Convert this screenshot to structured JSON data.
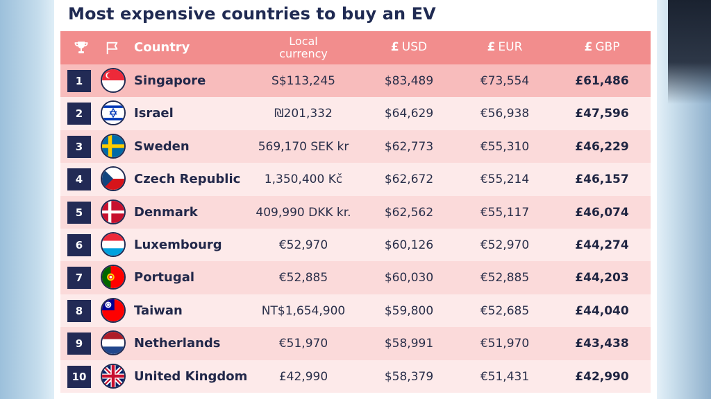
{
  "title": "Most expensive countries to buy an EV",
  "headers": {
    "country": "Country",
    "local": "Local currency",
    "usd_sym": "£",
    "usd": "USD",
    "eur_sym": "£",
    "eur": "EUR",
    "gbp_sym": "£",
    "gbp": "GBP"
  },
  "rows": [
    {
      "rank": "1",
      "country": "Singapore",
      "local": "S$113,245",
      "usd": "$83,489",
      "eur": "€73,554",
      "gbp": "£61,486",
      "flag": "singapore-flag-icon"
    },
    {
      "rank": "2",
      "country": "Israel",
      "local": "₪201,332",
      "usd": "$64,629",
      "eur": "€56,938",
      "gbp": "£47,596",
      "flag": "israel-flag-icon"
    },
    {
      "rank": "3",
      "country": "Sweden",
      "local": "569,170 SEK kr",
      "usd": "$62,773",
      "eur": "€55,310",
      "gbp": "£46,229",
      "flag": "sweden-flag-icon"
    },
    {
      "rank": "4",
      "country": "Czech Republic",
      "local": "1,350,400 Kč",
      "usd": "$62,672",
      "eur": "€55,214",
      "gbp": "£46,157",
      "flag": "czech-flag-icon"
    },
    {
      "rank": "5",
      "country": "Denmark",
      "local": "409,990 DKK kr.",
      "usd": "$62,562",
      "eur": "€55,117",
      "gbp": "£46,074",
      "flag": "denmark-flag-icon"
    },
    {
      "rank": "6",
      "country": "Luxembourg",
      "local": "€52,970",
      "usd": "$60,126",
      "eur": "€52,970",
      "gbp": "£44,274",
      "flag": "luxembourg-flag-icon"
    },
    {
      "rank": "7",
      "country": "Portugal",
      "local": "€52,885",
      "usd": "$60,030",
      "eur": "€52,885",
      "gbp": "£44,203",
      "flag": "portugal-flag-icon"
    },
    {
      "rank": "8",
      "country": "Taiwan",
      "local": "NT$1,654,900",
      "usd": "$59,800",
      "eur": "€52,685",
      "gbp": "£44,040",
      "flag": "taiwan-flag-icon"
    },
    {
      "rank": "9",
      "country": "Netherlands",
      "local": "€51,970",
      "usd": "$58,991",
      "eur": "€51,970",
      "gbp": "£43,438",
      "flag": "netherlands-flag-icon"
    },
    {
      "rank": "10",
      "country": "United Kingdom",
      "local": "£42,990",
      "usd": "$58,379",
      "eur": "€51,431",
      "gbp": "£42,990",
      "flag": "uk-flag-icon"
    }
  ],
  "colors": {
    "header": "#f28d8d",
    "row_highlight": "#f8bcbc",
    "row_a": "#fbdada",
    "row_b": "#fdeaea",
    "rank_badge": "#222a55",
    "title": "#1f2a52"
  }
}
